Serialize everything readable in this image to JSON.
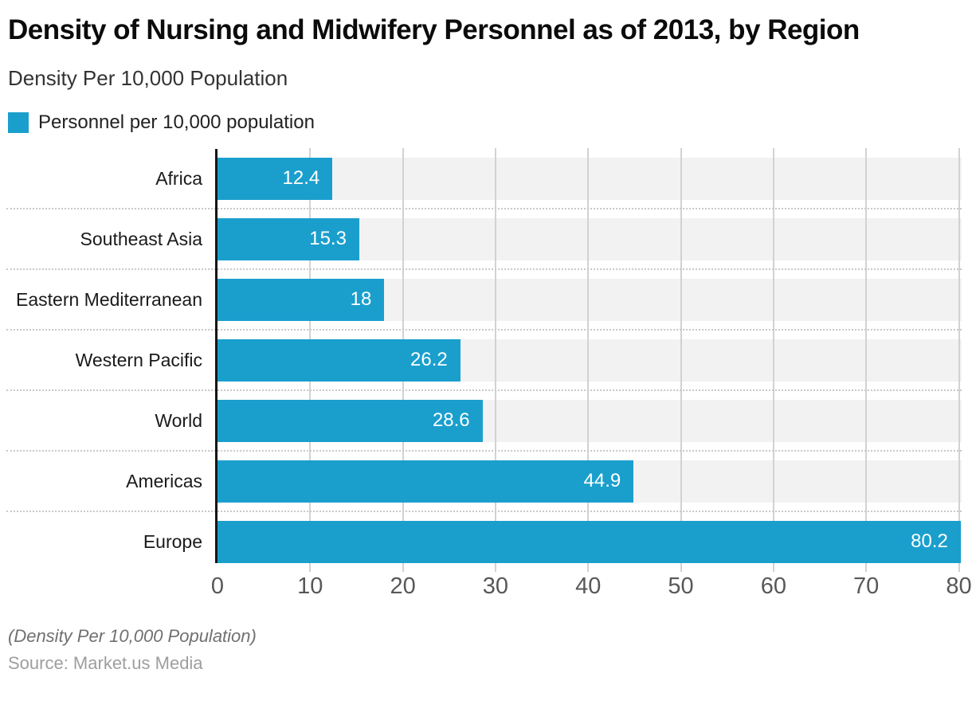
{
  "header": {
    "title": "Density of Nursing and Midwifery Personnel as of 2013, by Region",
    "subtitle": "Density Per 10,000 Population"
  },
  "legend": {
    "label": "Personnel per 10,000 population",
    "swatch_color": "#1a9fcd"
  },
  "chart_data": {
    "type": "bar",
    "orientation": "horizontal",
    "title": "Density of Nursing and Midwifery Personnel as of 2013, by Region",
    "series_name": "Personnel per 10,000 population",
    "categories": [
      "Africa",
      "Southeast Asia",
      "Eastern Mediterranean",
      "Western Pacific",
      "World",
      "Americas",
      "Europe"
    ],
    "values": [
      12.4,
      15.3,
      18,
      26.2,
      28.6,
      44.9,
      80.2
    ],
    "value_labels": [
      "12.4",
      "15.3",
      "18",
      "26.2",
      "28.6",
      "44.9",
      "80.2"
    ],
    "xlabel": "",
    "ylabel": "",
    "x_ticks": [
      0,
      10,
      20,
      30,
      40,
      50,
      60,
      70,
      80
    ],
    "xlim": [
      0,
      80.3
    ],
    "grid": "vertical",
    "legend_position": "top-left",
    "bar_color": "#1a9fcd",
    "row_band_color": "#f2f2f2",
    "gridline_color": "#d2d2d2",
    "axis_line_color": "#161616",
    "tick_label_color": "#58585a",
    "value_label_color": "#ffffff"
  },
  "footer": {
    "note": "(Density Per 10,000 Population)",
    "source": "Source: Market.us Media"
  }
}
